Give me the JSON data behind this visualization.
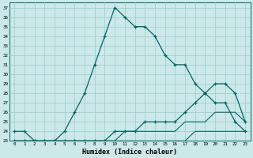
{
  "xlabel": "Humidex (Indice chaleur)",
  "bg_color": "#cce8e8",
  "grid_color": "#99cccc",
  "line_color": "#006666",
  "xmin": 0,
  "xmax": 23,
  "ymin": 23,
  "ymax": 37,
  "hours": [
    0,
    1,
    2,
    3,
    4,
    5,
    6,
    7,
    8,
    9,
    10,
    11,
    12,
    13,
    14,
    15,
    16,
    17,
    18,
    19,
    20,
    21,
    22,
    23
  ],
  "line_main": [
    24,
    24,
    23,
    23,
    23,
    24,
    26,
    28,
    31,
    34,
    37,
    36,
    35,
    35,
    34,
    32,
    31,
    31,
    29,
    28,
    27,
    27,
    25,
    24
  ],
  "line_upper": [
    23,
    23,
    23,
    23,
    23,
    23,
    23,
    23,
    23,
    23,
    24,
    24,
    24,
    25,
    25,
    25,
    25,
    26,
    27,
    28,
    29,
    29,
    28,
    25
  ],
  "line_mid": [
    23,
    23,
    23,
    23,
    23,
    23,
    23,
    23,
    23,
    23,
    23,
    24,
    24,
    24,
    24,
    24,
    24,
    25,
    25,
    25,
    26,
    26,
    26,
    25
  ],
  "line_low": [
    23,
    23,
    23,
    23,
    23,
    23,
    23,
    23,
    23,
    23,
    23,
    23,
    23,
    23,
    23,
    23,
    23,
    23,
    24,
    24,
    24,
    24,
    24,
    24
  ]
}
